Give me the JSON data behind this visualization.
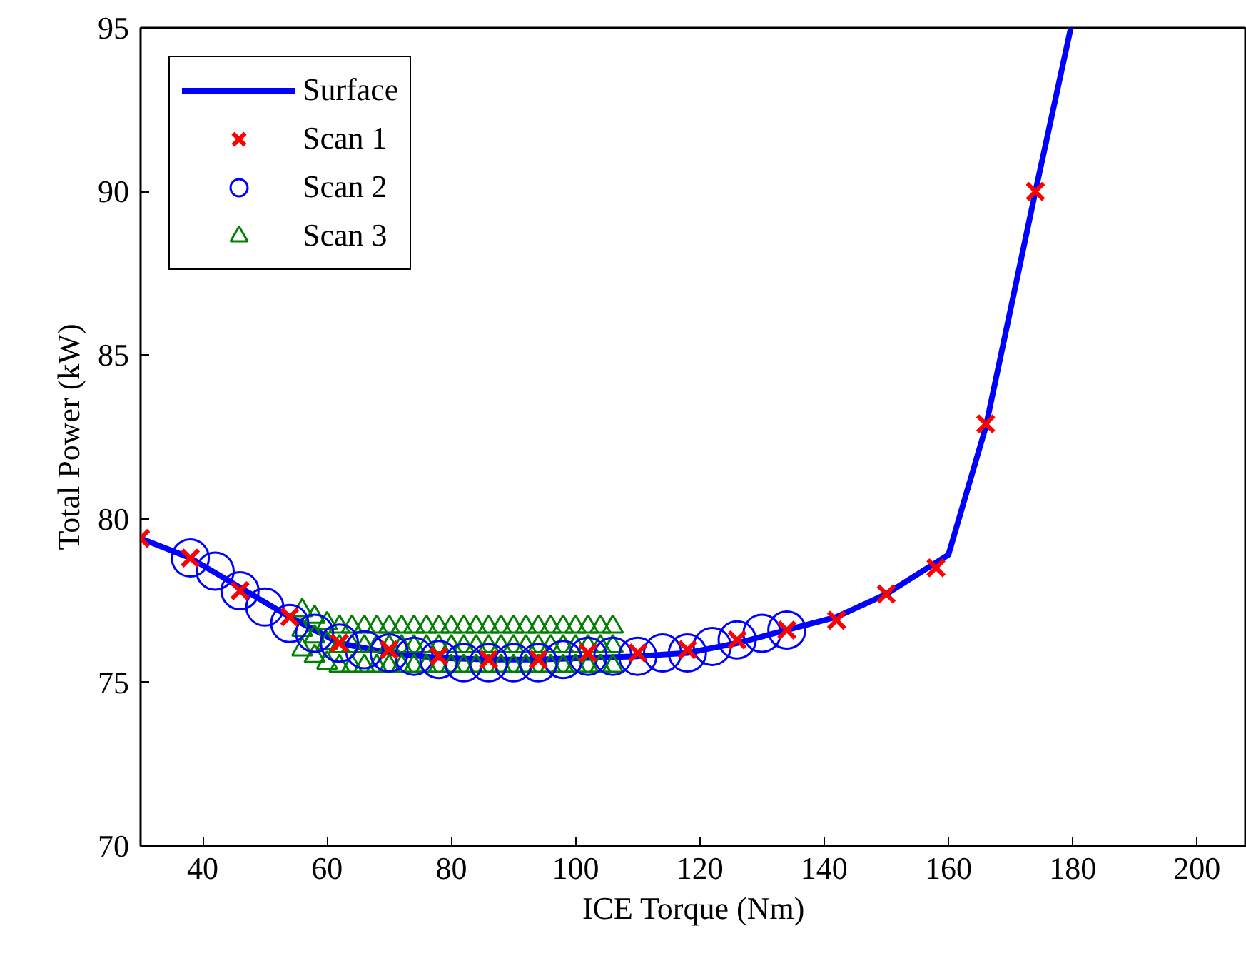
{
  "chart_data": {
    "type": "scatter",
    "xlabel": "ICE Torque (Nm)",
    "ylabel": "Total Power (kW)",
    "xlim": [
      30,
      208
    ],
    "ylim": [
      70,
      95
    ],
    "xticks": [
      40,
      60,
      80,
      100,
      120,
      140,
      160,
      180,
      200
    ],
    "yticks": [
      70,
      75,
      80,
      85,
      90,
      95
    ],
    "grid": false,
    "legend": "top left",
    "series": [
      {
        "name": "Surface",
        "type": "line",
        "line_style": "solid",
        "marker": "none",
        "color": "#0000ff",
        "x": [
          30,
          38,
          46,
          54,
          62,
          70,
          78,
          86,
          94,
          102,
          110,
          118,
          126,
          134,
          142,
          150,
          160,
          166,
          174,
          179.7
        ],
        "values": [
          79.4,
          78.8,
          77.9,
          77.0,
          76.2,
          75.9,
          75.75,
          75.7,
          75.7,
          75.75,
          75.8,
          75.9,
          76.2,
          76.6,
          77.0,
          77.7,
          78.9,
          82.8,
          90.0,
          95.0
        ]
      },
      {
        "name": "Scan 1",
        "marker": "cross",
        "color": "#ff0000",
        "x": [
          30,
          38,
          46,
          54,
          62,
          70,
          78,
          86,
          94,
          102,
          110,
          118,
          126,
          134,
          142,
          150,
          158,
          166,
          174
        ],
        "values": [
          79.4,
          78.8,
          77.8,
          77.0,
          76.2,
          76.0,
          75.8,
          75.7,
          75.7,
          75.9,
          75.9,
          76.0,
          76.3,
          76.6,
          76.9,
          77.7,
          78.5,
          82.9,
          90.0
        ]
      },
      {
        "name": "Scan 2",
        "marker": "circle",
        "color": "#0000ff",
        "x": [
          38,
          42,
          46,
          50,
          54,
          58,
          62,
          66,
          70,
          74,
          78,
          82,
          86,
          90,
          94,
          98,
          102,
          106,
          110,
          114,
          118,
          122,
          126,
          130,
          134
        ],
        "values": [
          78.8,
          78.4,
          77.8,
          77.3,
          76.8,
          76.5,
          76.2,
          76.0,
          75.9,
          75.8,
          75.7,
          75.6,
          75.6,
          75.6,
          75.6,
          75.7,
          75.8,
          75.8,
          75.8,
          75.9,
          75.9,
          76.1,
          76.3,
          76.5,
          76.6
        ]
      },
      {
        "name": "Scan 3",
        "marker": "triangle",
        "color": "#008000",
        "x": [
          56,
          58,
          60,
          62,
          64,
          66,
          68,
          70,
          72,
          74,
          76,
          78,
          80,
          82,
          84,
          86,
          88,
          90,
          92,
          94,
          96,
          98,
          100,
          102,
          104,
          106,
          56,
          58,
          60,
          62,
          64,
          66,
          68,
          70,
          72,
          74,
          76,
          78,
          80,
          82,
          84,
          86,
          88,
          90,
          92,
          94,
          96,
          98,
          100,
          102,
          104,
          106,
          56,
          58,
          60,
          62,
          64,
          66,
          68,
          70,
          72,
          74,
          76,
          78,
          80,
          82,
          84,
          86,
          88,
          90,
          92,
          94,
          96,
          98,
          100,
          102,
          104,
          106
        ],
        "values": [
          76.0,
          75.8,
          75.6,
          75.5,
          75.5,
          75.5,
          75.5,
          75.5,
          75.5,
          75.5,
          75.5,
          75.5,
          75.5,
          75.5,
          75.5,
          75.5,
          75.5,
          75.5,
          75.5,
          75.5,
          75.5,
          75.5,
          75.5,
          75.5,
          75.5,
          75.5,
          76.6,
          76.4,
          76.2,
          76.1,
          76.1,
          76.1,
          76.1,
          76.1,
          76.1,
          76.1,
          76.1,
          76.1,
          76.1,
          76.1,
          76.1,
          76.1,
          76.1,
          76.1,
          76.1,
          76.1,
          76.1,
          76.1,
          76.1,
          76.1,
          76.1,
          76.1,
          77.2,
          77.0,
          76.8,
          76.7,
          76.7,
          76.7,
          76.7,
          76.7,
          76.7,
          76.7,
          76.7,
          76.7,
          76.7,
          76.7,
          76.7,
          76.7,
          76.7,
          76.7,
          76.7,
          76.7,
          76.7,
          76.7,
          76.7,
          76.7,
          76.7,
          76.7
        ]
      }
    ]
  }
}
